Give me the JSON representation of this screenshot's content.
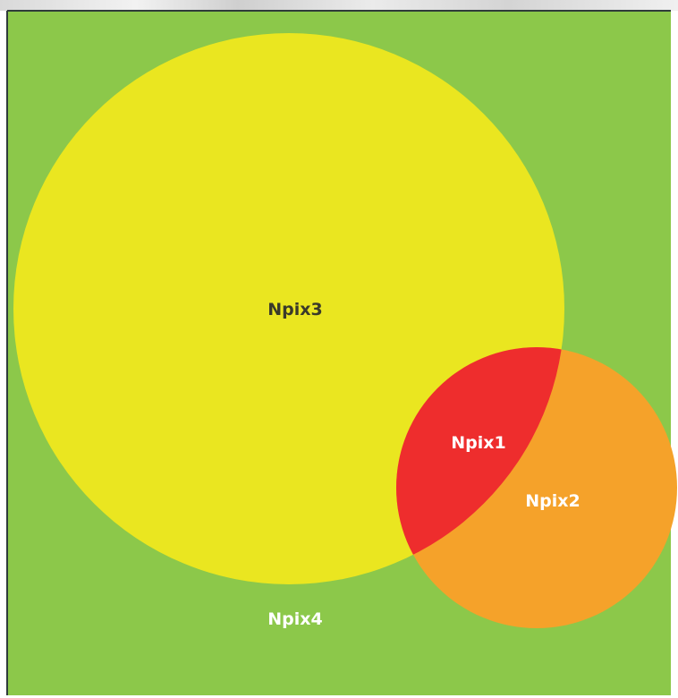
{
  "colors": {
    "background": "#8cc84a",
    "frame": "#2f3b3a",
    "large_circle": "#eae620",
    "small_circle": "#f5a22a",
    "intersection": "#ee2d2d",
    "dark_label": "#3a3a2a",
    "light_label": "#ffffff"
  },
  "regions": {
    "intersection_label": "Npix1",
    "small_circle_label": "Npix2",
    "large_circle_label": "Npix3",
    "outside_label": "Npix4"
  }
}
